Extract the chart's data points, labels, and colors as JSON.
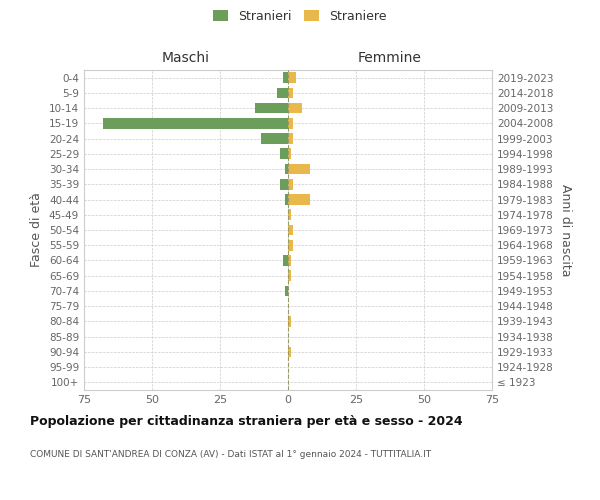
{
  "age_groups": [
    "100+",
    "95-99",
    "90-94",
    "85-89",
    "80-84",
    "75-79",
    "70-74",
    "65-69",
    "60-64",
    "55-59",
    "50-54",
    "45-49",
    "40-44",
    "35-39",
    "30-34",
    "25-29",
    "20-24",
    "15-19",
    "10-14",
    "5-9",
    "0-4"
  ],
  "birth_years": [
    "≤ 1923",
    "1924-1928",
    "1929-1933",
    "1934-1938",
    "1939-1943",
    "1944-1948",
    "1949-1953",
    "1954-1958",
    "1959-1963",
    "1964-1968",
    "1969-1973",
    "1974-1978",
    "1979-1983",
    "1984-1988",
    "1989-1993",
    "1994-1998",
    "1999-2003",
    "2004-2008",
    "2009-2013",
    "2014-2018",
    "2019-2023"
  ],
  "males_stranieri": [
    0,
    0,
    0,
    0,
    0,
    0,
    1,
    0,
    2,
    0,
    0,
    0,
    1,
    3,
    1,
    3,
    10,
    68,
    12,
    4,
    2
  ],
  "females_straniere": [
    0,
    0,
    1,
    0,
    1,
    0,
    0,
    1,
    1,
    2,
    2,
    1,
    8,
    2,
    8,
    1,
    2,
    2,
    5,
    2,
    3
  ],
  "male_color": "#6a9e5a",
  "female_color": "#e8b84b",
  "center_line_color": "#999966",
  "background_color": "#ffffff",
  "grid_color": "#cccccc",
  "title": "Popolazione per cittadinanza straniera per età e sesso - 2024",
  "subtitle": "COMUNE DI SANT'ANDREA DI CONZA (AV) - Dati ISTAT al 1° gennaio 2024 - TUTTITALIA.IT",
  "ylabel_left": "Fasce di età",
  "ylabel_right": "Anni di nascita",
  "header_left": "Maschi",
  "header_right": "Femmine",
  "legend_stranieri": "Stranieri",
  "legend_straniere": "Straniere",
  "xlim": 75,
  "bar_height": 0.7
}
